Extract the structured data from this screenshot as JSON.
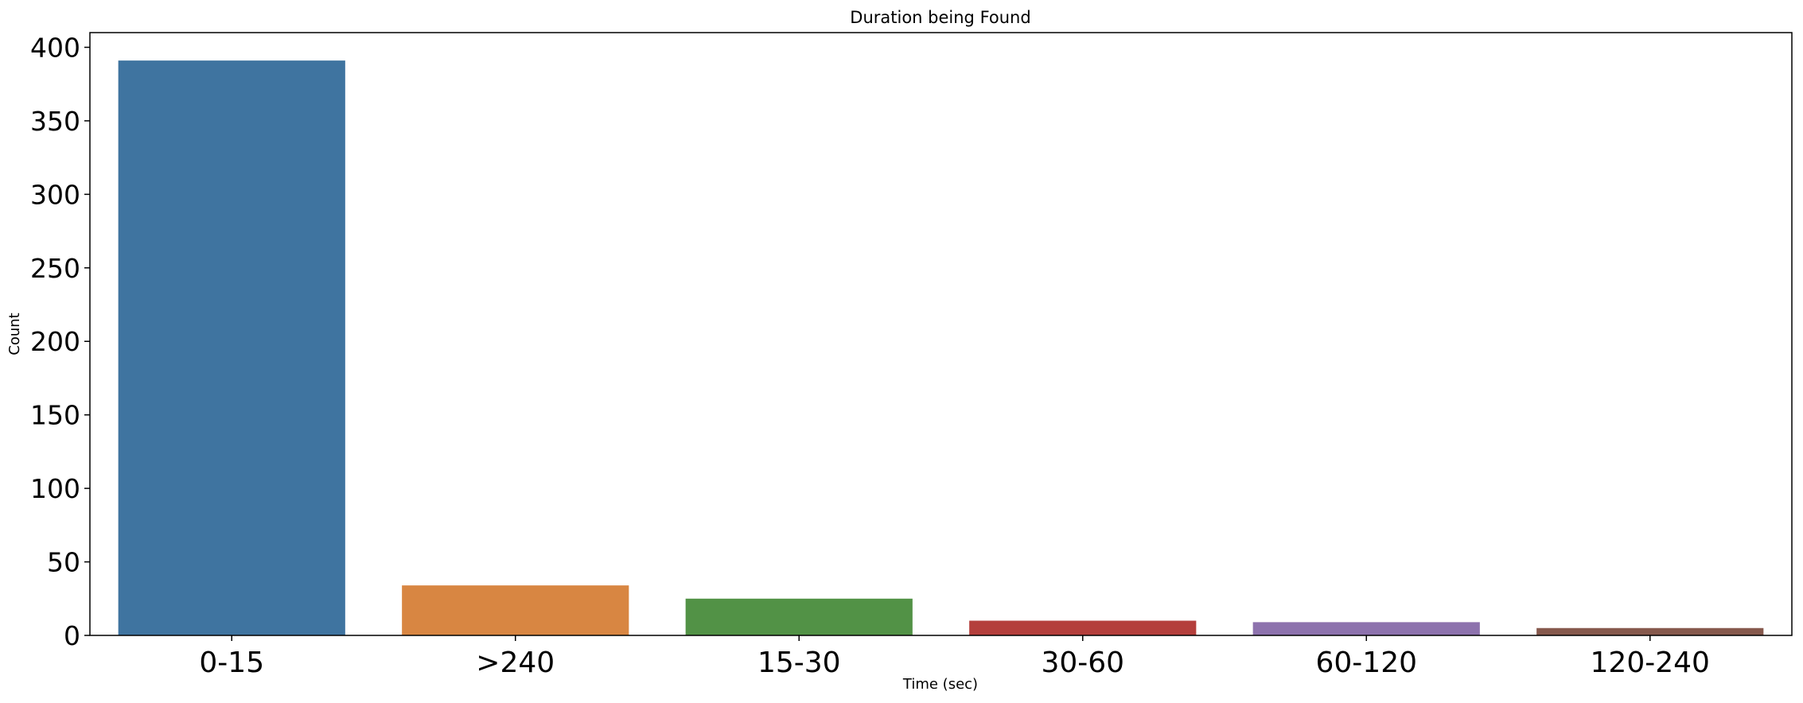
{
  "chart_data": {
    "type": "bar",
    "title": "Duration being Found",
    "xlabel": "Time (sec)",
    "ylabel": "Count",
    "categories": [
      "0-15",
      ">240",
      "15-30",
      "30-60",
      "60-120",
      "120-240"
    ],
    "values": [
      391,
      34,
      25,
      10,
      9,
      5
    ],
    "colors": [
      "#3f74a0",
      "#d88642",
      "#529246",
      "#b43f3c",
      "#8d72ad",
      "#86594d"
    ],
    "ylim": [
      0,
      410
    ],
    "yticks": [
      0,
      50,
      100,
      150,
      200,
      250,
      300,
      350,
      400
    ],
    "grid": false,
    "legend": "none"
  }
}
